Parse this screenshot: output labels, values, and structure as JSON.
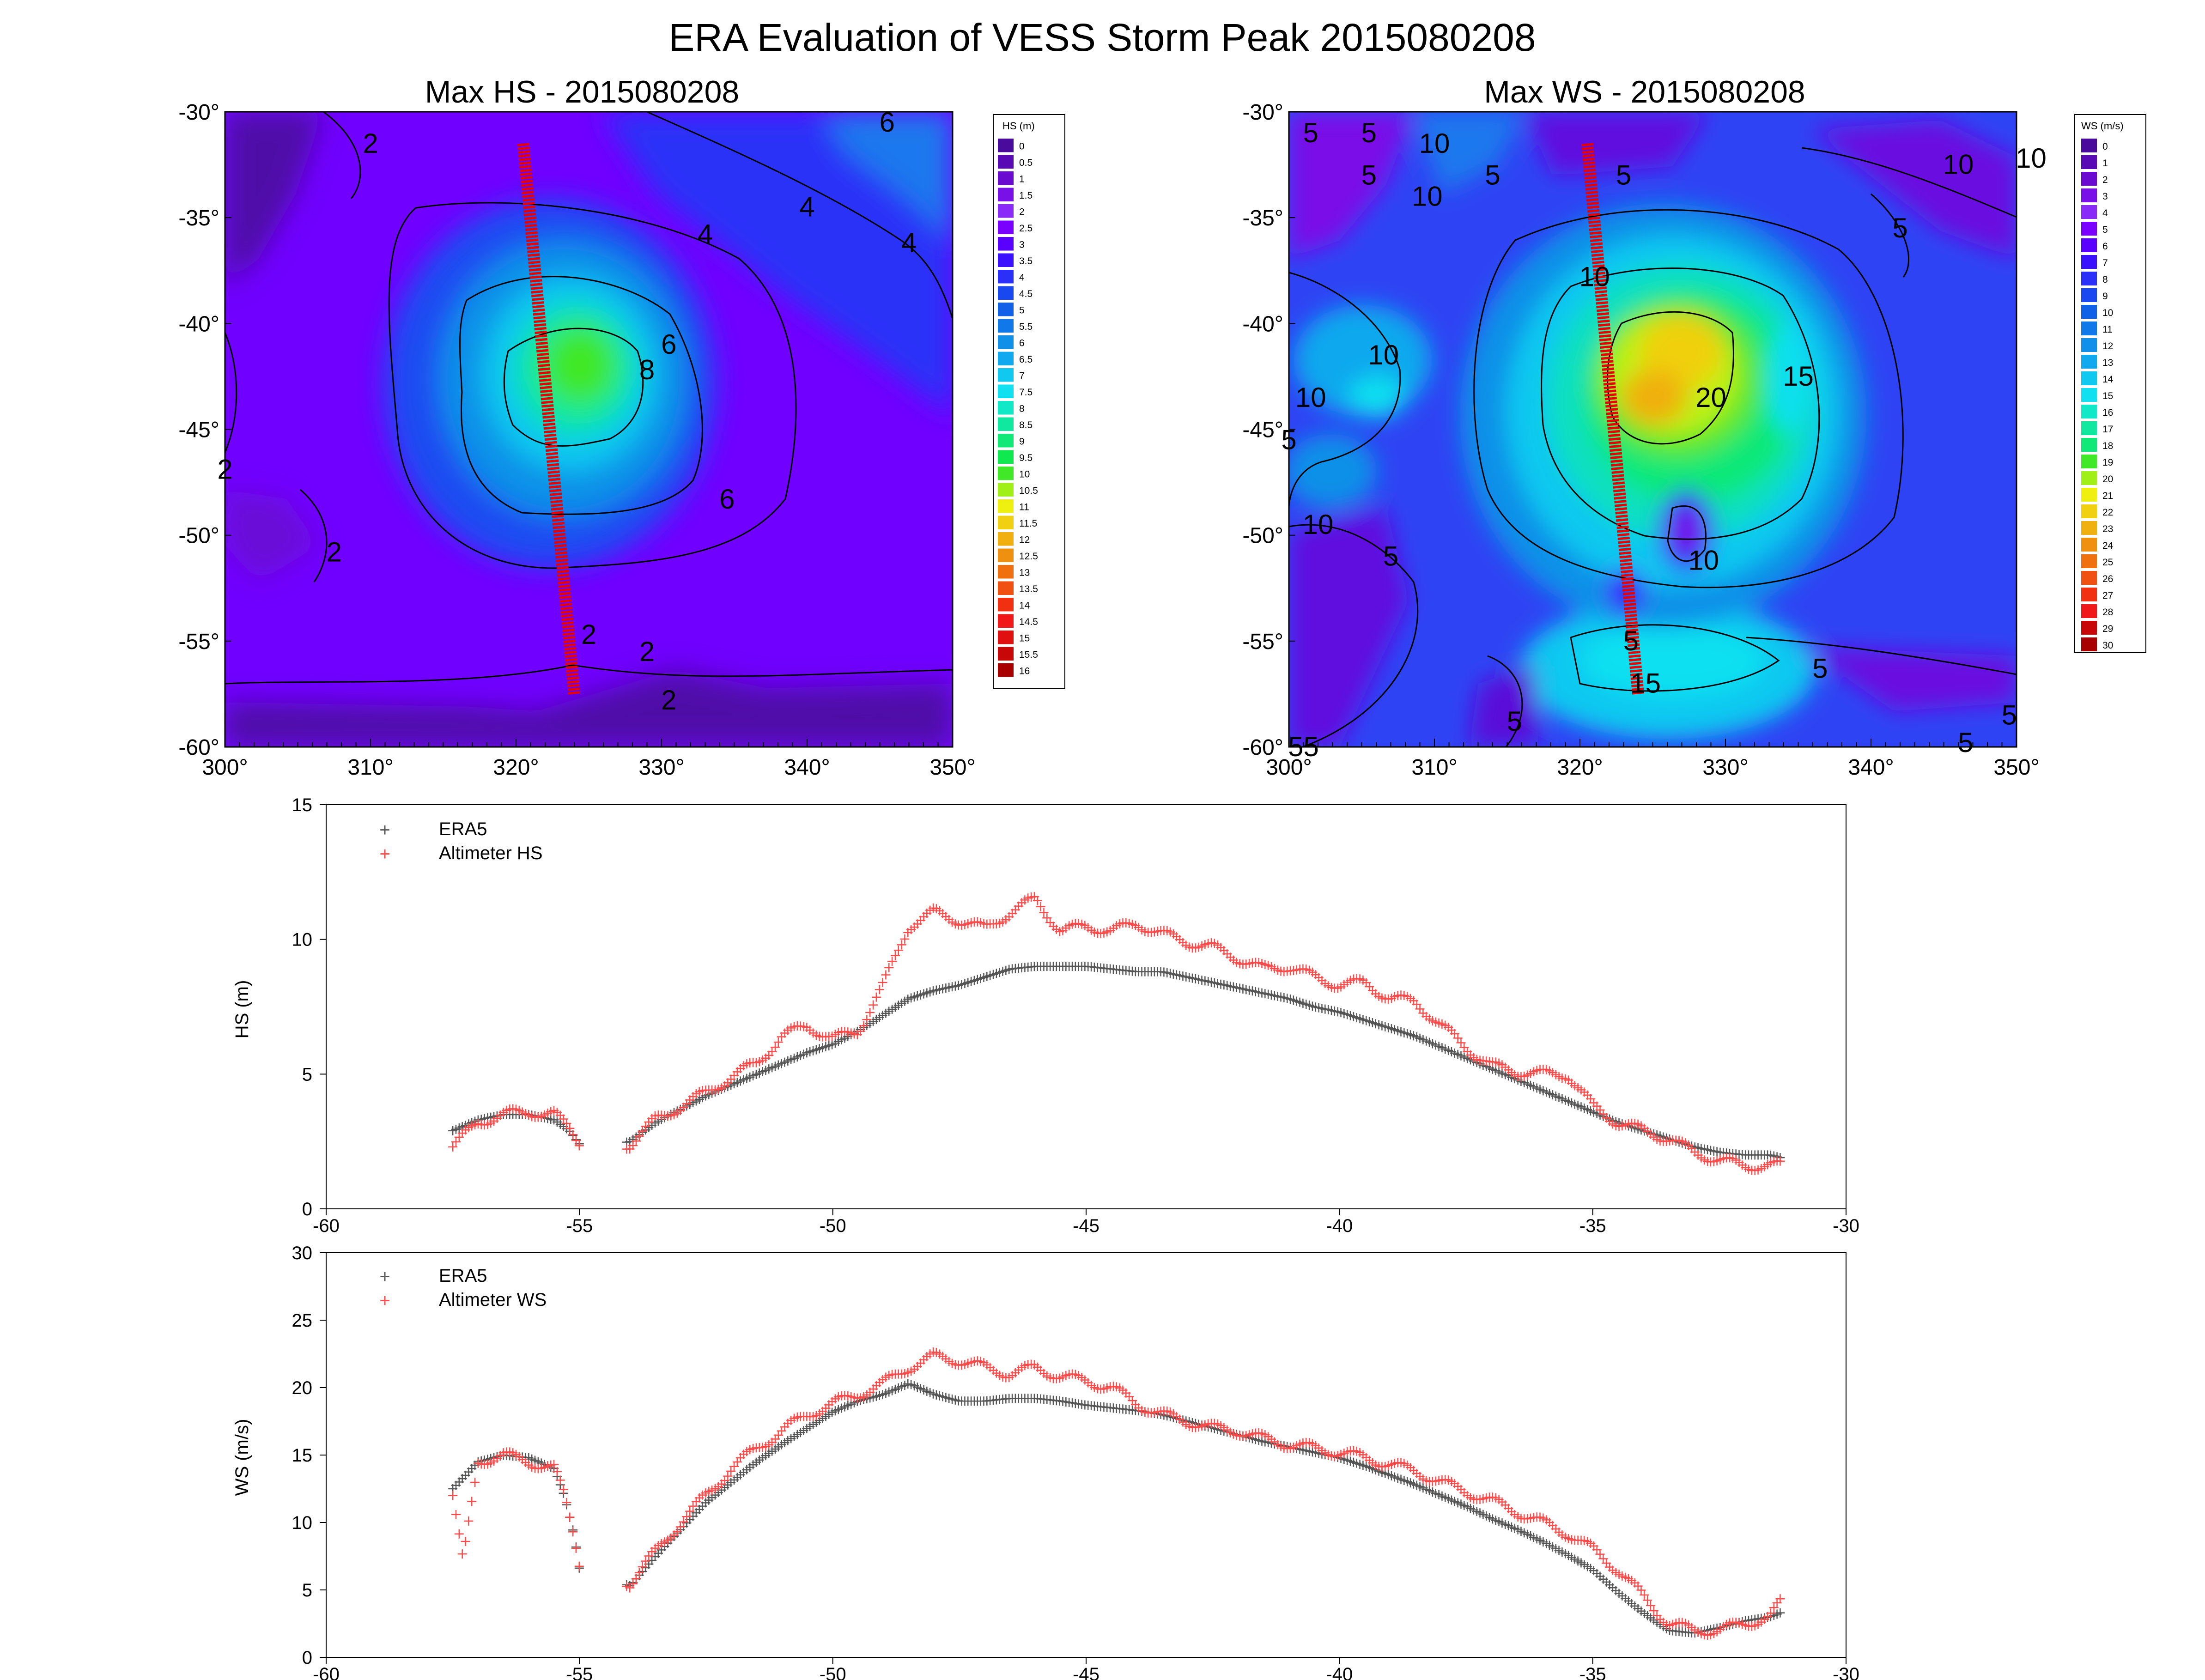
{
  "title": "ERA Evaluation of VESS Storm Peak 2015080208",
  "colors": {
    "era5_marker": "#555555",
    "altimeter_marker": "#ff4a4a",
    "track": "#e60000",
    "contour_line": "#000000"
  },
  "chart_data": [
    {
      "id": "hs_map",
      "type": "heatmap",
      "title": "Max HS - 2015080208",
      "colorbar_title": "HS (m)",
      "x_ticks": [
        "300°",
        "310°",
        "320°",
        "330°",
        "340°",
        "350°"
      ],
      "y_ticks": [
        "-30°",
        "-35°",
        "-40°",
        "-45°",
        "-50°",
        "-55°",
        "-60°"
      ],
      "xlim": [
        300,
        350
      ],
      "ylim": [
        -60,
        -30
      ],
      "colorbar_labels": [
        "0",
        "0.5",
        "1",
        "1.5",
        "2",
        "2.5",
        "3",
        "3.5",
        "4",
        "4.5",
        "5",
        "5.5",
        "6",
        "6.5",
        "7",
        "7.5",
        "8",
        "8.5",
        "9",
        "9.5",
        "10",
        "10.5",
        "11",
        "11.5",
        "12",
        "12.5",
        "13",
        "13.5",
        "14",
        "14.5",
        "15",
        "15.5",
        "16"
      ],
      "colorbar_colors": [
        "#4a0a9c",
        "#5a0ab4",
        "#6a0ad0",
        "#7a10e8",
        "#8a2af8",
        "#7a00ff",
        "#5a00ff",
        "#3a10ff",
        "#2a30f8",
        "#1a48f0",
        "#1060e8",
        "#1078e8",
        "#1090e8",
        "#10a8ee",
        "#10c8f0",
        "#10e0f0",
        "#10e8c8",
        "#10e8a0",
        "#10e878",
        "#10e850",
        "#40e828",
        "#a0f018",
        "#f0f010",
        "#f0d010",
        "#f0b010",
        "#f09010",
        "#f07010",
        "#f05010",
        "#f03010",
        "#f01818",
        "#e01010",
        "#c80808",
        "#a80000"
      ],
      "contour_labels": [
        {
          "text": "2",
          "x": 310,
          "y": -31.5
        },
        {
          "text": "6",
          "x": 345.5,
          "y": -30.5
        },
        {
          "text": "4",
          "x": 340,
          "y": -34.5
        },
        {
          "text": "4",
          "x": 333,
          "y": -35.8
        },
        {
          "text": "4",
          "x": 347,
          "y": -36.2
        },
        {
          "text": "6",
          "x": 330.5,
          "y": -41
        },
        {
          "text": "8",
          "x": 329,
          "y": -42.2
        },
        {
          "text": "2",
          "x": 300,
          "y": -46.9
        },
        {
          "text": "6",
          "x": 334.5,
          "y": -48.3
        },
        {
          "text": "2",
          "x": 307.5,
          "y": -50.8
        },
        {
          "text": "2",
          "x": 325,
          "y": -54.7
        },
        {
          "text": "2",
          "x": 329,
          "y": -55.5
        },
        {
          "text": "2",
          "x": 330.5,
          "y": -57.8
        }
      ],
      "track": {
        "start": [
          320.5,
          -31.5
        ],
        "end": [
          324,
          -57.5
        ]
      }
    },
    {
      "id": "ws_map",
      "type": "heatmap",
      "title": "Max WS - 2015080208",
      "colorbar_title": "WS (m/s)",
      "x_ticks": [
        "300°",
        "310°",
        "320°",
        "330°",
        "340°",
        "350°"
      ],
      "y_ticks": [
        "-30°",
        "-35°",
        "-40°",
        "-45°",
        "-50°",
        "-55°",
        "-60°"
      ],
      "xlim": [
        300,
        350
      ],
      "ylim": [
        -60,
        -30
      ],
      "colorbar_labels": [
        "0",
        "1",
        "2",
        "3",
        "4",
        "5",
        "6",
        "7",
        "8",
        "9",
        "10",
        "11",
        "12",
        "13",
        "14",
        "15",
        "16",
        "17",
        "18",
        "19",
        "20",
        "21",
        "22",
        "23",
        "24",
        "25",
        "26",
        "27",
        "28",
        "29",
        "30"
      ],
      "colorbar_colors": [
        "#4a0a9c",
        "#5a0ab4",
        "#6a0ad0",
        "#7a10e8",
        "#8a2af8",
        "#7a00ff",
        "#5a00ff",
        "#3a10ff",
        "#2a30f8",
        "#1a48f0",
        "#1060e8",
        "#1078e8",
        "#1090e8",
        "#10a8ee",
        "#10c8f0",
        "#10e0f0",
        "#10e8c8",
        "#10e8a0",
        "#10e878",
        "#40e828",
        "#a0f018",
        "#f0f010",
        "#f0d010",
        "#f0b010",
        "#f09010",
        "#f07010",
        "#f05010",
        "#f03010",
        "#f01818",
        "#c80808",
        "#a80000"
      ],
      "contour_labels": [
        {
          "text": "5",
          "x": 301.5,
          "y": -31
        },
        {
          "text": "5",
          "x": 305.5,
          "y": -31
        },
        {
          "text": "10",
          "x": 310,
          "y": -31.5
        },
        {
          "text": "5",
          "x": 305.5,
          "y": -33
        },
        {
          "text": "10",
          "x": 309.5,
          "y": -34
        },
        {
          "text": "5",
          "x": 314,
          "y": -33
        },
        {
          "text": "5",
          "x": 323,
          "y": -33
        },
        {
          "text": "10",
          "x": 346,
          "y": -32.5
        },
        {
          "text": "10",
          "x": 351,
          "y": -32.2
        },
        {
          "text": "5",
          "x": 342,
          "y": -35.5
        },
        {
          "text": "10",
          "x": 321,
          "y": -37.8
        },
        {
          "text": "10",
          "x": 306.5,
          "y": -41.5
        },
        {
          "text": "10",
          "x": 301.5,
          "y": -43.5
        },
        {
          "text": "20",
          "x": 329,
          "y": -43.5
        },
        {
          "text": "15",
          "x": 335,
          "y": -42.5
        },
        {
          "text": "5",
          "x": 300,
          "y": -45.5
        },
        {
          "text": "10",
          "x": 302,
          "y": -49.5
        },
        {
          "text": "5",
          "x": 307,
          "y": -51
        },
        {
          "text": "10",
          "x": 328.5,
          "y": -51.2
        },
        {
          "text": "15",
          "x": 324.5,
          "y": -57
        },
        {
          "text": "5",
          "x": 336.5,
          "y": -56.3
        },
        {
          "text": "5",
          "x": 315.5,
          "y": -58.8
        },
        {
          "text": "5",
          "x": 349.5,
          "y": -58.5
        },
        {
          "text": "5",
          "x": 346.5,
          "y": -59.8
        },
        {
          "text": "55",
          "x": 301,
          "y": -60
        },
        {
          "text": "5",
          "x": 323.5,
          "y": -55
        }
      ],
      "track": {
        "start": [
          320.5,
          -31.5
        ],
        "end": [
          324,
          -57.5
        ]
      }
    },
    {
      "id": "hs_line",
      "type": "scatter",
      "ylabel": "HS (m)",
      "xlim": [
        -60,
        -30
      ],
      "ylim": [
        0,
        15
      ],
      "x_ticks": [
        "-60",
        "-55",
        "-50",
        "-45",
        "-40",
        "-35",
        "-30"
      ],
      "y_ticks": [
        "0",
        "5",
        "10",
        "15"
      ],
      "series": [
        {
          "name": "ERA5",
          "x": [
            -57.5,
            -57,
            -56.5,
            -56,
            -55.5,
            -55.2,
            -55,
            -54.8,
            -54,
            -53.5,
            -53,
            -52.5,
            -52,
            -51.5,
            -51,
            -50.5,
            -50,
            -49.5,
            -49,
            -48.5,
            -48,
            -47.5,
            -47,
            -46.5,
            -46,
            -45.5,
            -45,
            -44.5,
            -44,
            -43.5,
            -43,
            -42.5,
            -42,
            -41.5,
            -41,
            -40.5,
            -40,
            -39.5,
            -39,
            -38.5,
            -38,
            -37.5,
            -37,
            -36.5,
            -36,
            -35.5,
            -35,
            -34.5,
            -34,
            -33.5,
            -33,
            -32.5,
            -32,
            -31.5,
            -31.3
          ],
          "y": [
            2.9,
            3.3,
            3.5,
            3.5,
            3.3,
            2.9,
            2.4,
            2.2,
            2.5,
            3.2,
            3.7,
            4.2,
            4.6,
            5.0,
            5.4,
            5.8,
            6.1,
            6.6,
            7.2,
            7.8,
            8.1,
            8.3,
            8.6,
            8.9,
            9.0,
            9.0,
            9.0,
            8.9,
            8.8,
            8.8,
            8.6,
            8.4,
            8.2,
            8.0,
            7.8,
            7.5,
            7.3,
            7.0,
            6.7,
            6.4,
            6.0,
            5.6,
            5.2,
            4.8,
            4.4,
            4.0,
            3.6,
            3.2,
            2.9,
            2.6,
            2.3,
            2.1,
            2.0,
            2.0,
            1.9
          ]
        },
        {
          "name": "Altimeter HS",
          "x": [
            -57.5,
            -57,
            -56.5,
            -56,
            -55.5,
            -55.2,
            -55,
            -54.8,
            -54,
            -53.5,
            -53,
            -52.5,
            -52,
            -51.5,
            -51,
            -50.5,
            -50,
            -49.5,
            -49,
            -48.5,
            -48,
            -47.5,
            -47,
            -46.5,
            -46,
            -45.5,
            -45,
            -44.5,
            -44,
            -43.5,
            -43,
            -42.5,
            -42,
            -41.5,
            -41,
            -40.5,
            -40,
            -39.5,
            -39,
            -38.5,
            -38,
            -37.5,
            -37,
            -36.5,
            -36,
            -35.5,
            -35,
            -34.5,
            -34,
            -33.5,
            -33,
            -32.5,
            -32,
            -31.5,
            -31.3
          ],
          "y": [
            2.3,
            3.2,
            3.5,
            3.6,
            3.5,
            3.0,
            2.5,
            2.3,
            2.4,
            3.3,
            3.8,
            4.3,
            4.9,
            5.4,
            6.4,
            6.8,
            6.3,
            6.6,
            8.3,
            10.5,
            11.0,
            10.7,
            10.4,
            11.0,
            11.5,
            10.3,
            10.5,
            10.3,
            10.6,
            10.2,
            9.9,
            9.7,
            9.3,
            8.9,
            9.0,
            8.6,
            8.3,
            8.4,
            7.8,
            7.7,
            6.8,
            6.0,
            5.3,
            5.1,
            5.0,
            5.0,
            3.8,
            3.2,
            2.9,
            2.6,
            2.1,
            1.8,
            1.6,
            1.6,
            1.6
          ]
        }
      ]
    },
    {
      "id": "ws_line",
      "type": "scatter",
      "ylabel": "WS (m/s)",
      "xlim": [
        -60,
        -30
      ],
      "ylim": [
        0,
        30
      ],
      "x_ticks": [
        "-60",
        "-55",
        "-50",
        "-45",
        "-40",
        "-35",
        "-30"
      ],
      "y_ticks": [
        "0",
        "5",
        "10",
        "15",
        "20",
        "25",
        "30"
      ],
      "series": [
        {
          "name": "ERA5",
          "x": [
            -57.5,
            -57,
            -56.5,
            -56,
            -55.5,
            -55.3,
            -55.1,
            -55,
            -54,
            -53.5,
            -53,
            -52.5,
            -52,
            -51.5,
            -51,
            -50.5,
            -50,
            -49.5,
            -49,
            -48.5,
            -48,
            -47.5,
            -47,
            -46.5,
            -46,
            -45.5,
            -45,
            -44.5,
            -44,
            -43.5,
            -43,
            -42.5,
            -42,
            -41.5,
            -41,
            -40.5,
            -40,
            -39.5,
            -39,
            -38.5,
            -38,
            -37.5,
            -37,
            -36.5,
            -36,
            -35.5,
            -35,
            -34.5,
            -34,
            -33.5,
            -33,
            -32.5,
            -32,
            -31.5,
            -31.3
          ],
          "y": [
            12.5,
            14.5,
            15.0,
            14.8,
            14.0,
            12.0,
            9.0,
            6.5,
            5.3,
            7.5,
            9.5,
            11.5,
            13.0,
            14.5,
            15.8,
            17.0,
            18.2,
            19.0,
            19.5,
            20.3,
            19.5,
            19.0,
            19.0,
            19.2,
            19.2,
            19.0,
            18.7,
            18.5,
            18.3,
            18.0,
            17.5,
            17.0,
            16.5,
            16.0,
            15.6,
            15.2,
            14.8,
            14.2,
            13.5,
            12.8,
            12.0,
            11.2,
            10.3,
            9.5,
            8.6,
            7.6,
            6.5,
            4.8,
            3.3,
            2.0,
            1.8,
            2.2,
            2.7,
            3.0,
            3.3
          ]
        },
        {
          "name": "Altimeter WS",
          "x": [
            -57.5,
            -57.3,
            -57,
            -56.5,
            -56,
            -55.5,
            -55.3,
            -55.1,
            -55,
            -54,
            -53.5,
            -53,
            -52.5,
            -52,
            -51.5,
            -51,
            -50.5,
            -50,
            -49.5,
            -49,
            -48.5,
            -48,
            -47.5,
            -47,
            -46.5,
            -46,
            -45.5,
            -45,
            -44.5,
            -44,
            -43.5,
            -43,
            -42.5,
            -42,
            -41.5,
            -41,
            -40.5,
            -40,
            -39.5,
            -39,
            -38.5,
            -38,
            -37.5,
            -37,
            -36.5,
            -36,
            -35.5,
            -35,
            -34.5,
            -34,
            -33.5,
            -33,
            -32.5,
            -32,
            -31.5,
            -31.3
          ],
          "y": [
            12.0,
            7.0,
            14.5,
            15.0,
            14.5,
            14.0,
            12.0,
            9.0,
            7.0,
            5.5,
            7.8,
            10.0,
            12.0,
            14.0,
            15.5,
            16.8,
            18.0,
            18.8,
            19.5,
            20.3,
            21.5,
            22.3,
            22.0,
            21.5,
            21.0,
            21.5,
            20.8,
            20.5,
            20.0,
            18.8,
            18.0,
            17.5,
            17.0,
            16.8,
            16.2,
            15.8,
            15.5,
            15.2,
            14.8,
            14.3,
            13.8,
            13.0,
            12.3,
            11.6,
            10.8,
            10.0,
            9.2,
            8.0,
            6.5,
            4.5,
            2.5,
            2.0,
            2.0,
            2.5,
            3.0,
            4.0
          ]
        }
      ]
    }
  ]
}
